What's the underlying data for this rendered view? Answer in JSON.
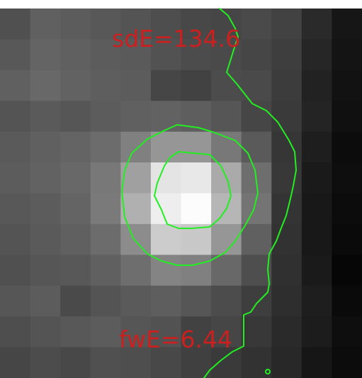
{
  "annotations": {
    "sd_label": "sdE=134.6",
    "fw_label": "fwE=6.44"
  },
  "colors": {
    "label": "#cc1f1f",
    "contour": "#22ee22",
    "background": "#ffffff"
  },
  "pixel_grid": {
    "rows": 12,
    "cols": 12,
    "values": [
      [
        80,
        96,
        92,
        88,
        84,
        78,
        72,
        70,
        74,
        66,
        42,
        22
      ],
      [
        88,
        100,
        96,
        92,
        90,
        82,
        76,
        74,
        70,
        62,
        38,
        20
      ],
      [
        96,
        104,
        98,
        94,
        92,
        70,
        66,
        76,
        74,
        60,
        34,
        18
      ],
      [
        84,
        90,
        86,
        92,
        96,
        98,
        94,
        86,
        70,
        58,
        36,
        16
      ],
      [
        90,
        96,
        100,
        108,
        128,
        150,
        150,
        120,
        90,
        54,
        30,
        12
      ],
      [
        92,
        98,
        104,
        120,
        160,
        228,
        232,
        170,
        110,
        56,
        26,
        14
      ],
      [
        88,
        92,
        100,
        122,
        176,
        238,
        252,
        182,
        116,
        52,
        24,
        12
      ],
      [
        84,
        90,
        96,
        108,
        140,
        204,
        200,
        150,
        96,
        50,
        24,
        10
      ],
      [
        80,
        86,
        88,
        96,
        110,
        132,
        128,
        104,
        78,
        48,
        26,
        6
      ],
      [
        86,
        92,
        74,
        84,
        90,
        94,
        86,
        76,
        62,
        46,
        30,
        10
      ],
      [
        78,
        84,
        88,
        92,
        86,
        82,
        66,
        70,
        56,
        42,
        28,
        14
      ],
      [
        70,
        76,
        72,
        80,
        78,
        72,
        64,
        58,
        50,
        40,
        22,
        12
      ]
    ]
  }
}
